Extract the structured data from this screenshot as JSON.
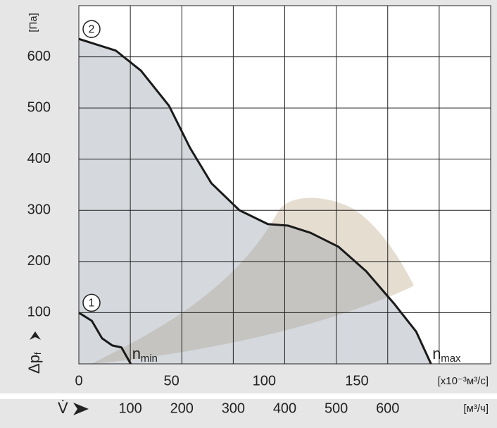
{
  "chart_data": {
    "type": "line",
    "ylabel": "Δp",
    "ylabel_sub": "f",
    "yunit": "[Па]",
    "xlabel": "V̇",
    "xunit": "[x10⁻³м³/c]",
    "x2unit": "[м³/ч]",
    "xlim": [
      0,
      222.2
    ],
    "xticks": [
      0,
      50,
      100,
      150
    ],
    "x2lim": [
      0,
      800
    ],
    "x2ticks": [
      100,
      200,
      300,
      400,
      500,
      600
    ],
    "x2grid": [
      100,
      200,
      300,
      400,
      500,
      600,
      700
    ],
    "ylim": [
      0,
      700
    ],
    "yticks": [
      100,
      200,
      300,
      400,
      500,
      600
    ],
    "grid": true,
    "series": [
      {
        "name": "2",
        "label": "n",
        "label_sub": "max",
        "color": "#1a1a1a",
        "x": [
          0,
          20,
          33.5,
          48.7,
          60,
          71.5,
          86.7,
          102,
          113,
          125,
          140,
          155,
          170,
          182,
          190
        ],
        "values": [
          635,
          612,
          573,
          504,
          422,
          353,
          300,
          273,
          270,
          256,
          229,
          181,
          118,
          63,
          0
        ]
      },
      {
        "name": "1",
        "label": "n",
        "label_sub": "min",
        "color": "#1a1a1a",
        "x": [
          0,
          7,
          12.5,
          18,
          23,
          28
        ],
        "values": [
          100,
          84,
          50,
          36,
          32,
          0
        ]
      }
    ]
  }
}
